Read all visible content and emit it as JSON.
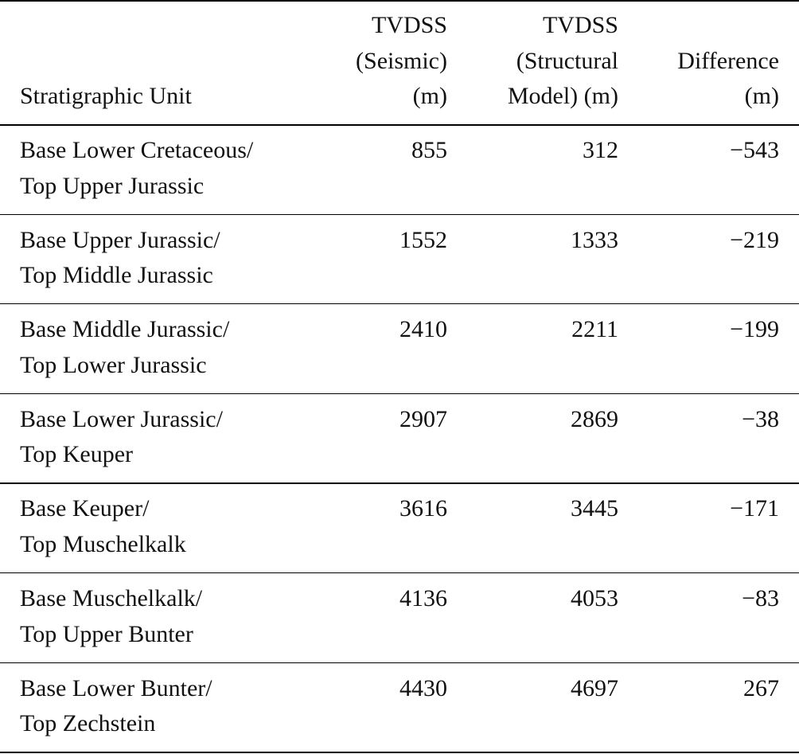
{
  "table": {
    "header": [
      [
        "Stratigraphic Unit"
      ],
      [
        "TVDSS",
        "(Seismic)",
        "(m)"
      ],
      [
        "TVDSS",
        "(Structural",
        "Model) (m)"
      ],
      [
        "Difference",
        "(m)"
      ]
    ],
    "rows": [
      [
        [
          "Base Lower Cretaceous/",
          "Top Upper Jurassic"
        ],
        "855",
        "312",
        "−543"
      ],
      [
        [
          "Base Upper Jurassic/",
          "Top Middle Jurassic"
        ],
        "1552",
        "1333",
        "−219"
      ],
      [
        [
          "Base Middle Jurassic/",
          "Top Lower Jurassic"
        ],
        "2410",
        "2211",
        "−199"
      ],
      [
        [
          "Base Lower Jurassic/",
          "Top Keuper"
        ],
        "2907",
        "2869",
        "−38"
      ],
      [
        [
          "Base Keuper/",
          "Top Muschelkalk"
        ],
        "3616",
        "3445",
        "−171"
      ],
      [
        [
          "Base Muschelkalk/",
          "Top Upper Bunter"
        ],
        "4136",
        "4053",
        "−83"
      ],
      [
        [
          "Base Lower Bunter/",
          "Top Zechstein"
        ],
        "4430",
        "4697",
        "267"
      ]
    ]
  }
}
